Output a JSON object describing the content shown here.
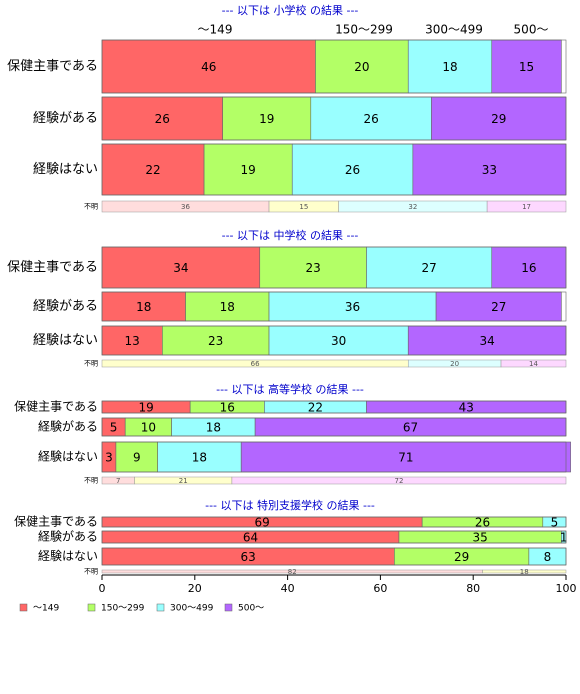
{
  "chart_data": {
    "type": "bar",
    "stacked": true,
    "orientation": "horizontal",
    "xlim": [
      0,
      100
    ],
    "x_ticks": [
      0,
      20,
      40,
      60,
      80,
      100
    ],
    "column_headers": [
      "～149",
      "150～299",
      "300～499",
      "500～"
    ],
    "colors": [
      "#ff6666",
      "#b3ff66",
      "#99ffff",
      "#b366ff"
    ],
    "unknown_colors": [
      "#ffdddd",
      "#ffffcc",
      "#ddffff",
      "#fdd8ff"
    ],
    "unknown_label": "不明",
    "legend": {
      "position": "bottom-left",
      "entries": [
        "～149",
        "150～299",
        "300～499",
        "500～"
      ]
    },
    "panels": [
      {
        "title": "--- 以下は 小学校 の結果 ---",
        "rows": [
          {
            "label": "保健主事である",
            "values": [
              46,
              20,
              18,
              15
            ]
          },
          {
            "label": "経験がある",
            "values": [
              26,
              19,
              26,
              29
            ]
          },
          {
            "label": "経験はない",
            "values": [
              22,
              19,
              26,
              33
            ]
          }
        ],
        "unknown": [
          36,
          15,
          32,
          17
        ]
      },
      {
        "title": "--- 以下は 中学校 の結果 ---",
        "rows": [
          {
            "label": "保健主事である",
            "values": [
              34,
              23,
              27,
              16
            ]
          },
          {
            "label": "経験がある",
            "values": [
              18,
              18,
              36,
              27
            ]
          },
          {
            "label": "経験はない",
            "values": [
              13,
              23,
              30,
              34
            ]
          }
        ],
        "unknown": [
          0,
          66,
          20,
          14
        ]
      },
      {
        "title": "--- 以下は 高等学校 の結果 ---",
        "rows": [
          {
            "label": "保健主事である",
            "values": [
              19,
              16,
              22,
              43
            ]
          },
          {
            "label": "経験がある",
            "values": [
              5,
              10,
              18,
              67
            ]
          },
          {
            "label": "経験はない",
            "values": [
              3,
              9,
              18,
              71
            ]
          }
        ],
        "unknown": [
          7,
          21,
          0,
          72
        ]
      },
      {
        "title": "--- 以下は 特別支援学校 の結果 ---",
        "rows": [
          {
            "label": "保健主事である",
            "values": [
              69,
              26,
              5,
              0
            ]
          },
          {
            "label": "経験がある",
            "values": [
              64,
              35,
              1,
              0
            ]
          },
          {
            "label": "経験はない",
            "values": [
              63,
              29,
              8,
              0
            ]
          }
        ],
        "unknown": [
          82,
          18,
          0,
          0
        ]
      }
    ]
  }
}
